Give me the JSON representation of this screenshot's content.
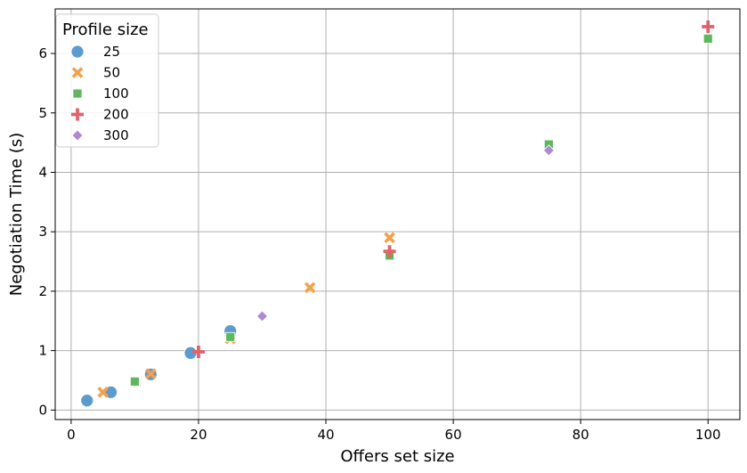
{
  "chart_data": {
    "type": "scatter",
    "title": "",
    "xlabel": "Offers set size",
    "ylabel": "Negotiation Time (s)",
    "xlim": [
      -2.5,
      105
    ],
    "ylim": [
      -0.16,
      6.75
    ],
    "xticks": [
      0,
      20,
      40,
      60,
      80,
      100
    ],
    "yticks": [
      0,
      1,
      2,
      3,
      4,
      5,
      6
    ],
    "grid": true,
    "legend": {
      "title": "Profile size",
      "placement": "top-left"
    },
    "series": [
      {
        "name": "25",
        "marker": "circle",
        "color": "#5b9bd0",
        "points": [
          [
            2.5,
            0.16
          ],
          [
            6.25,
            0.3
          ],
          [
            12.5,
            0.6
          ],
          [
            18.75,
            0.96
          ],
          [
            25,
            1.33
          ]
        ]
      },
      {
        "name": "50",
        "marker": "x",
        "color": "#f5a04a",
        "points": [
          [
            5,
            0.3
          ],
          [
            12.5,
            0.61
          ],
          [
            25,
            1.2
          ],
          [
            37.5,
            2.06
          ],
          [
            50,
            2.9
          ]
        ]
      },
      {
        "name": "100",
        "marker": "square",
        "color": "#5cb85c",
        "points": [
          [
            10,
            0.48
          ],
          [
            25,
            1.23
          ],
          [
            50,
            2.6
          ],
          [
            75,
            4.47
          ],
          [
            100,
            6.25
          ]
        ]
      },
      {
        "name": "200",
        "marker": "plus",
        "color": "#e0636b",
        "points": [
          [
            20,
            0.98
          ],
          [
            50,
            2.67
          ],
          [
            100,
            6.45
          ]
        ]
      },
      {
        "name": "300",
        "marker": "diamond",
        "color": "#b08ad0",
        "points": [
          [
            30,
            1.58
          ],
          [
            75,
            4.37
          ]
        ]
      }
    ]
  }
}
